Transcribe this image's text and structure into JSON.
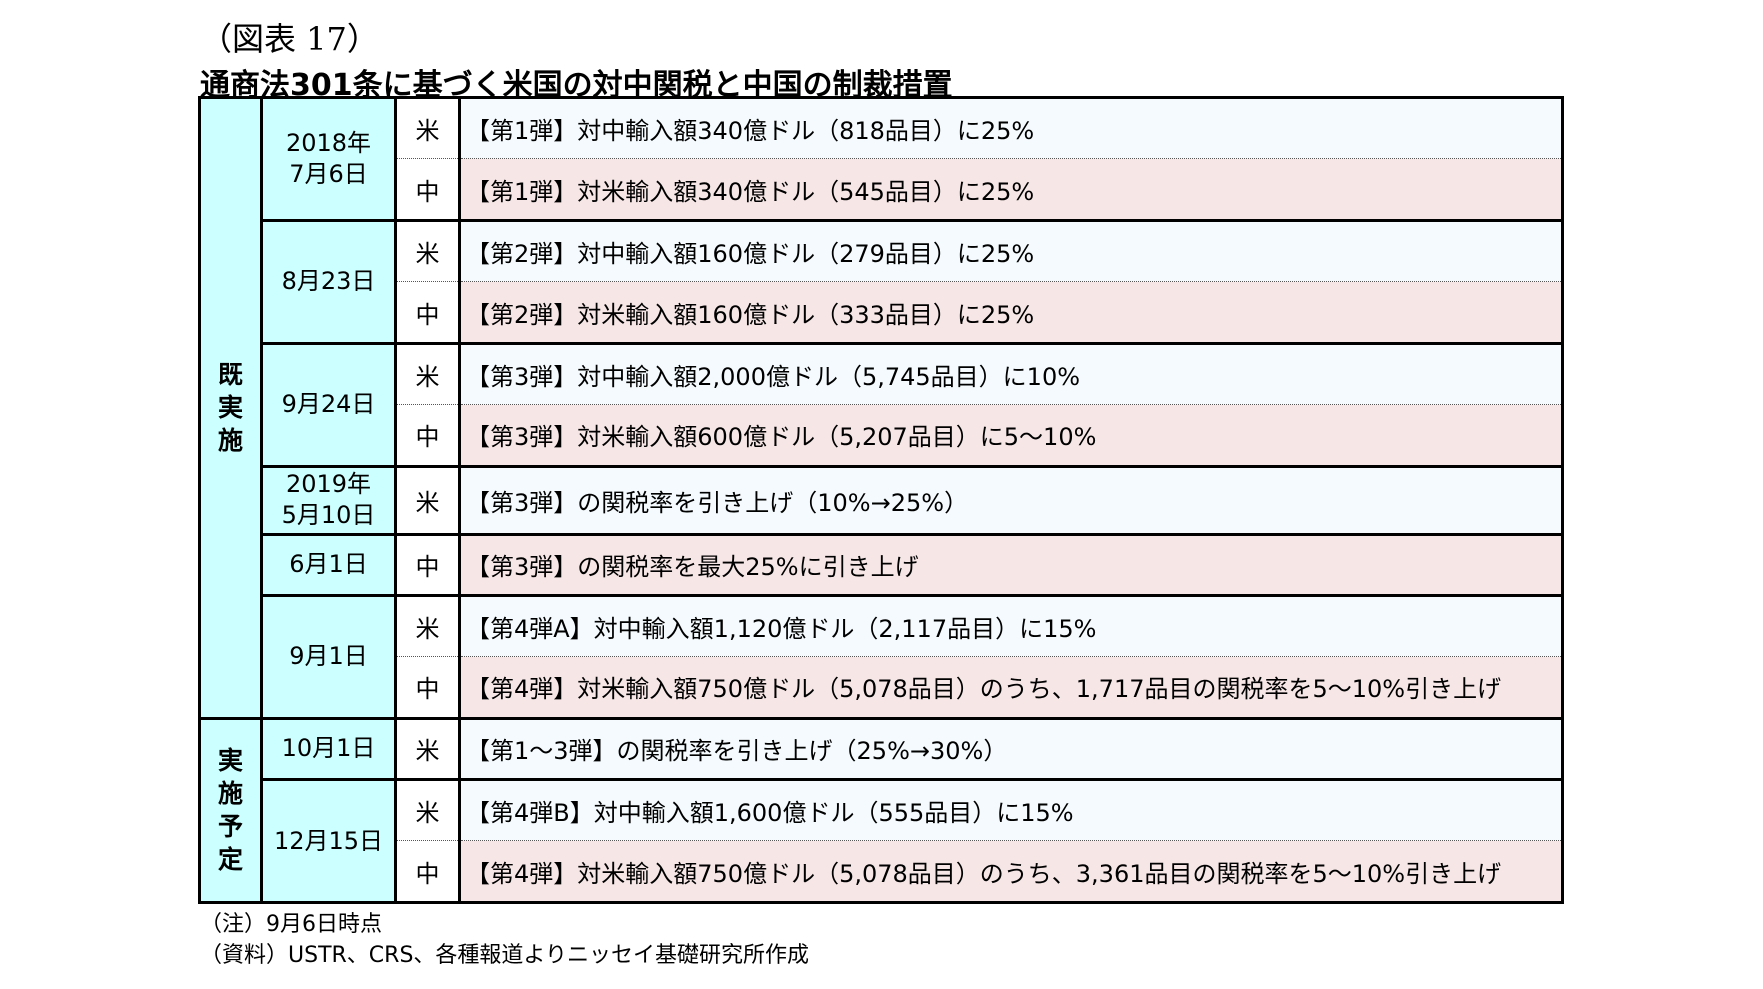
{
  "figure_label": "（図表 17）",
  "title": "通商法301条に基づく米国の対中関税と中国の制裁措置",
  "categories": {
    "implemented": "既実施",
    "planned": "実施予定"
  },
  "rows": [
    {
      "date": "2018年\n7月6日",
      "country": "米",
      "text": "【第1弾】対中輸入額340億ドル（818品目）に25%"
    },
    {
      "country": "中",
      "text": "【第1弾】対米輸入額340億ドル（545品目）に25%"
    },
    {
      "date": "8月23日",
      "country": "米",
      "text": "【第2弾】対中輸入額160億ドル（279品目）に25%"
    },
    {
      "country": "中",
      "text": "【第2弾】対米輸入額160億ドル（333品目）に25%"
    },
    {
      "date": "9月24日",
      "country": "米",
      "text": "【第3弾】対中輸入額2,000億ドル（5,745品目）に10%"
    },
    {
      "country": "中",
      "text": "【第3弾】対米輸入額600億ドル（5,207品目）に5～10%"
    },
    {
      "date": "2019年\n5月10日",
      "country": "米",
      "text": "【第3弾】の関税率を引き上げ（10%→25%）"
    },
    {
      "date": "6月1日",
      "country": "中",
      "text": "【第3弾】の関税率を最大25%に引き上げ"
    },
    {
      "date": "9月1日",
      "country": "米",
      "text": "【第4弾A】対中輸入額1,120億ドル（2,117品目）に15%"
    },
    {
      "country": "中",
      "text": "【第4弾】対米輸入額750億ドル（5,078品目）のうち、1,717品目の関税率を5～10%引き上げ"
    },
    {
      "date": "10月1日",
      "country": "米",
      "text": "【第1～3弾】の関税率を引き上げ（25%→30%）"
    },
    {
      "date": "12月15日",
      "country": "米",
      "text": "【第4弾B】対中輸入額1,600億ドル（555品目）に15%"
    },
    {
      "country": "中",
      "text": "【第4弾】対米輸入額750億ドル（5,078品目）のうち、3,361品目の関税率を5～10%引き上げ"
    }
  ],
  "notes": {
    "note": "（注）9月6日時点",
    "source": "（資料）USTR、CRS、各種報道よりニッセイ基礎研究所作成"
  }
}
